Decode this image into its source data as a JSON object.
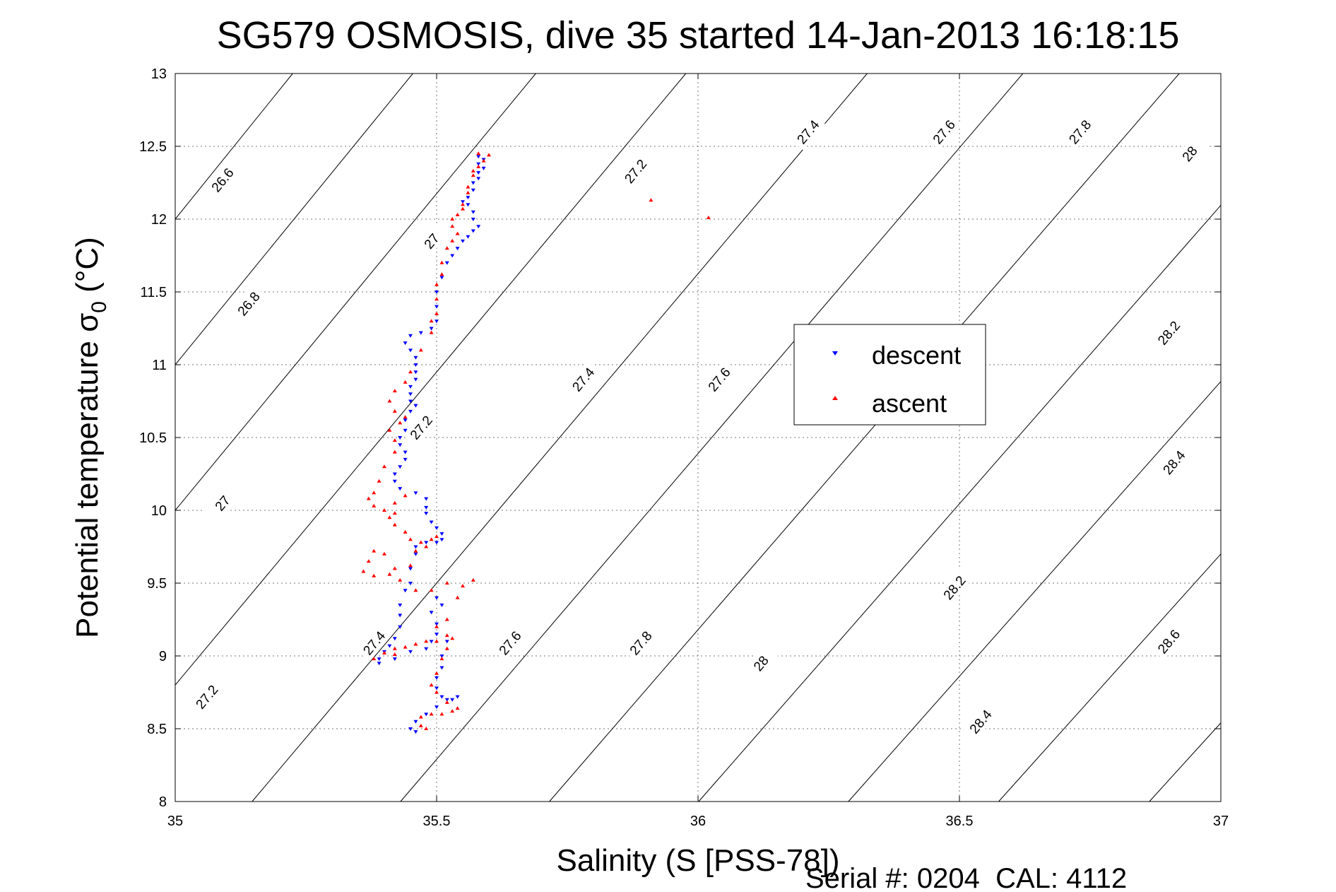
{
  "chart_data": {
    "type": "scatter",
    "title": "SG579 OSMOSIS, dive 35 started 14-Jan-2013 16:18:15",
    "xlabel": "Salinity (S [PSS-78])",
    "ylabel": "Potential temperature σ",
    "ylabel_sub": "0",
    "ylabel_unit": "(°C)",
    "xlim": [
      35,
      37
    ],
    "ylim": [
      8,
      13
    ],
    "xticks": [
      "35",
      "35.5",
      "36",
      "36.5",
      "37"
    ],
    "yticks": [
      "8",
      "8.5",
      "9",
      "9.5",
      "10",
      "10.5",
      "11",
      "11.5",
      "12",
      "12.5",
      "13"
    ],
    "grid": true,
    "legend_position": "right-center",
    "legend": [
      "descent",
      "ascent"
    ],
    "colors": {
      "descent": "#0000ff",
      "ascent": "#ff0000",
      "contour": "#000000"
    },
    "footnote": "Serial #: 0204  CAL: 4112",
    "contours": [
      {
        "label": "26.6",
        "s0": 35.0,
        "t0": 12.0,
        "slope": 4.45
      },
      {
        "label": "26.8",
        "s0": 35.0,
        "t0": 11.0,
        "slope": 4.4
      },
      {
        "label": "27",
        "s0": 35.0,
        "t0": 10.0,
        "slope": 4.35
      },
      {
        "label": "27.2",
        "s0": 35.0,
        "t0": 8.8,
        "slope": 4.3
      },
      {
        "label": "27.4",
        "s0": 35.3,
        "t0": 8.65,
        "slope": 4.25
      },
      {
        "label": "27.6",
        "s0": 35.55,
        "t0": 8.5,
        "slope": 4.2
      },
      {
        "label": "27.8",
        "s0": 35.8,
        "t0": 8.35,
        "slope": 4.15
      },
      {
        "label": "28",
        "s0": 36.05,
        "t0": 8.2,
        "slope": 4.1
      },
      {
        "label": "28.2",
        "s0": 36.3,
        "t0": 8.05,
        "slope": 4.05
      },
      {
        "label": "28.4",
        "s0": 36.55,
        "t0": 7.9,
        "slope": 4.0
      },
      {
        "label": "28.6",
        "s0": 36.8,
        "t0": 7.75,
        "slope": 3.95
      }
    ],
    "contour_labels": [
      {
        "label": "26.6",
        "x": 35.09,
        "y": 12.27
      },
      {
        "label": "26.8",
        "x": 35.14,
        "y": 11.42
      },
      {
        "label": "27",
        "x": 35.09,
        "y": 10.05
      },
      {
        "label": "27",
        "x": 35.49,
        "y": 11.85
      },
      {
        "label": "27.2",
        "x": 35.06,
        "y": 8.72
      },
      {
        "label": "27.2",
        "x": 35.47,
        "y": 10.57
      },
      {
        "label": "27.2",
        "x": 35.88,
        "y": 12.33
      },
      {
        "label": "27.4",
        "x": 35.38,
        "y": 9.09
      },
      {
        "label": "27.4",
        "x": 35.78,
        "y": 10.9
      },
      {
        "label": "27.4",
        "x": 36.21,
        "y": 12.6
      },
      {
        "label": "27.6",
        "x": 35.64,
        "y": 9.09
      },
      {
        "label": "27.6",
        "x": 36.04,
        "y": 10.9
      },
      {
        "label": "27.6",
        "x": 36.47,
        "y": 12.6
      },
      {
        "label": "27.8",
        "x": 35.89,
        "y": 9.09
      },
      {
        "label": "27.8",
        "x": 36.73,
        "y": 12.6
      },
      {
        "label": "28",
        "x": 36.12,
        "y": 8.95
      },
      {
        "label": "28",
        "x": 36.94,
        "y": 12.45
      },
      {
        "label": "28.2",
        "x": 36.49,
        "y": 9.47
      },
      {
        "label": "28.2",
        "x": 36.9,
        "y": 11.22
      },
      {
        "label": "28.4",
        "x": 36.54,
        "y": 8.55
      },
      {
        "label": "28.4",
        "x": 36.91,
        "y": 10.33
      },
      {
        "label": "28.6",
        "x": 36.9,
        "y": 9.1
      }
    ],
    "series": [
      {
        "name": "descent",
        "marker": "triangle-down",
        "points": [
          [
            35.58,
            12.43
          ],
          [
            35.59,
            12.41
          ],
          [
            35.58,
            12.38
          ],
          [
            35.59,
            12.35
          ],
          [
            35.58,
            12.32
          ],
          [
            35.58,
            12.28
          ],
          [
            35.57,
            12.25
          ],
          [
            35.57,
            12.2
          ],
          [
            35.56,
            12.15
          ],
          [
            35.55,
            12.12
          ],
          [
            35.56,
            12.1
          ],
          [
            35.57,
            12.05
          ],
          [
            35.57,
            12.0
          ],
          [
            35.58,
            11.95
          ],
          [
            35.57,
            11.92
          ],
          [
            35.56,
            11.88
          ],
          [
            35.55,
            11.85
          ],
          [
            35.54,
            11.8
          ],
          [
            35.53,
            11.75
          ],
          [
            35.52,
            11.7
          ],
          [
            35.51,
            11.6
          ],
          [
            35.5,
            11.5
          ],
          [
            35.5,
            11.4
          ],
          [
            35.5,
            11.3
          ],
          [
            35.49,
            11.25
          ],
          [
            35.47,
            11.22
          ],
          [
            35.45,
            11.2
          ],
          [
            35.44,
            11.15
          ],
          [
            35.45,
            11.1
          ],
          [
            35.46,
            11.05
          ],
          [
            35.46,
            11.0
          ],
          [
            35.46,
            10.95
          ],
          [
            35.46,
            10.9
          ],
          [
            35.45,
            10.85
          ],
          [
            35.45,
            10.8
          ],
          [
            35.45,
            10.75
          ],
          [
            35.46,
            10.72
          ],
          [
            35.45,
            10.68
          ],
          [
            35.44,
            10.62
          ],
          [
            35.44,
            10.55
          ],
          [
            35.43,
            10.5
          ],
          [
            35.43,
            10.45
          ],
          [
            35.44,
            10.4
          ],
          [
            35.44,
            10.35
          ],
          [
            35.43,
            10.3
          ],
          [
            35.42,
            10.25
          ],
          [
            35.42,
            10.2
          ],
          [
            35.43,
            10.15
          ],
          [
            35.46,
            10.12
          ],
          [
            35.48,
            10.08
          ],
          [
            35.48,
            10.02
          ],
          [
            35.48,
            9.98
          ],
          [
            35.49,
            9.92
          ],
          [
            35.5,
            9.88
          ],
          [
            35.51,
            9.84
          ],
          [
            35.51,
            9.8
          ],
          [
            35.5,
            9.78
          ],
          [
            35.48,
            9.78
          ],
          [
            35.46,
            9.75
          ],
          [
            35.46,
            9.7
          ],
          [
            35.45,
            9.6
          ],
          [
            35.45,
            9.5
          ],
          [
            35.44,
            9.45
          ],
          [
            35.43,
            9.35
          ],
          [
            35.43,
            9.28
          ],
          [
            35.43,
            9.2
          ],
          [
            35.42,
            9.12
          ],
          [
            35.41,
            9.07
          ],
          [
            35.4,
            9.03
          ],
          [
            35.39,
            8.98
          ],
          [
            35.39,
            8.95
          ],
          [
            35.42,
            8.98
          ],
          [
            35.45,
            9.03
          ],
          [
            35.48,
            9.05
          ],
          [
            35.49,
            9.1
          ],
          [
            35.5,
            9.15
          ],
          [
            35.5,
            9.22
          ],
          [
            35.49,
            9.3
          ],
          [
            35.5,
            9.4
          ],
          [
            35.51,
            9.35
          ],
          [
            35.52,
            9.1
          ],
          [
            35.51,
            9.0
          ],
          [
            35.51,
            8.92
          ],
          [
            35.5,
            8.85
          ],
          [
            35.5,
            8.78
          ],
          [
            35.51,
            8.72
          ],
          [
            35.53,
            8.7
          ],
          [
            35.54,
            8.72
          ],
          [
            35.52,
            8.7
          ],
          [
            35.5,
            8.65
          ],
          [
            35.48,
            8.6
          ],
          [
            35.46,
            8.55
          ],
          [
            35.45,
            8.5
          ],
          [
            35.46,
            8.48
          ]
        ]
      },
      {
        "name": "ascent",
        "marker": "triangle-up",
        "points": [
          [
            35.58,
            12.45
          ],
          [
            35.6,
            12.44
          ],
          [
            35.59,
            12.4
          ],
          [
            35.58,
            12.36
          ],
          [
            35.57,
            12.33
          ],
          [
            35.57,
            12.3
          ],
          [
            35.56,
            12.22
          ],
          [
            35.56,
            12.18
          ],
          [
            35.55,
            12.1
          ],
          [
            35.55,
            12.07
          ],
          [
            35.54,
            12.03
          ],
          [
            35.53,
            12.0
          ],
          [
            35.53,
            11.95
          ],
          [
            35.54,
            11.9
          ],
          [
            35.53,
            11.85
          ],
          [
            35.52,
            11.8
          ],
          [
            35.51,
            11.7
          ],
          [
            35.51,
            11.62
          ],
          [
            35.5,
            11.55
          ],
          [
            35.5,
            11.45
          ],
          [
            35.5,
            11.35
          ],
          [
            35.49,
            11.3
          ],
          [
            35.49,
            11.22
          ],
          [
            35.47,
            11.1
          ],
          [
            35.45,
            10.95
          ],
          [
            35.44,
            10.88
          ],
          [
            35.42,
            10.82
          ],
          [
            35.41,
            10.75
          ],
          [
            35.42,
            10.68
          ],
          [
            35.44,
            10.64
          ],
          [
            35.43,
            10.6
          ],
          [
            35.41,
            10.55
          ],
          [
            35.42,
            10.48
          ],
          [
            35.42,
            10.4
          ],
          [
            35.4,
            10.3
          ],
          [
            35.39,
            10.2
          ],
          [
            35.38,
            10.12
          ],
          [
            35.37,
            10.08
          ],
          [
            35.38,
            10.03
          ],
          [
            35.4,
            10.0
          ],
          [
            35.42,
            10.05
          ],
          [
            35.44,
            10.1
          ],
          [
            35.42,
            9.98
          ],
          [
            35.41,
            9.95
          ],
          [
            35.42,
            9.9
          ],
          [
            35.44,
            9.85
          ],
          [
            35.45,
            9.8
          ],
          [
            35.47,
            9.78
          ],
          [
            35.49,
            9.8
          ],
          [
            35.5,
            9.82
          ],
          [
            35.48,
            9.75
          ],
          [
            35.46,
            9.72
          ],
          [
            35.45,
            9.62
          ],
          [
            35.43,
            9.52
          ],
          [
            35.42,
            9.6
          ],
          [
            35.4,
            9.7
          ],
          [
            35.38,
            9.72
          ],
          [
            35.37,
            9.65
          ],
          [
            35.36,
            9.58
          ],
          [
            35.38,
            9.55
          ],
          [
            35.41,
            9.56
          ],
          [
            35.46,
            9.45
          ],
          [
            35.49,
            9.45
          ],
          [
            35.52,
            9.5
          ],
          [
            35.55,
            9.48
          ],
          [
            35.57,
            9.52
          ],
          [
            35.54,
            9.4
          ],
          [
            35.52,
            9.25
          ],
          [
            35.5,
            9.2
          ],
          [
            35.48,
            9.1
          ],
          [
            35.46,
            9.08
          ],
          [
            35.44,
            9.06
          ],
          [
            35.42,
            9.05
          ],
          [
            35.4,
            9.02
          ],
          [
            35.38,
            8.98
          ],
          [
            35.42,
            9.01
          ],
          [
            35.46,
            9.08
          ],
          [
            35.5,
            9.1
          ],
          [
            35.52,
            9.14
          ],
          [
            35.53,
            9.12
          ],
          [
            35.52,
            9.05
          ],
          [
            35.51,
            8.98
          ],
          [
            35.5,
            8.88
          ],
          [
            35.49,
            8.8
          ],
          [
            35.5,
            8.75
          ],
          [
            35.52,
            8.68
          ],
          [
            35.54,
            8.64
          ],
          [
            35.53,
            8.62
          ],
          [
            35.51,
            8.6
          ],
          [
            35.49,
            8.6
          ],
          [
            35.47,
            8.58
          ],
          [
            35.47,
            8.52
          ],
          [
            35.48,
            8.5
          ],
          [
            35.91,
            12.13
          ],
          [
            36.02,
            12.01
          ]
        ]
      }
    ]
  }
}
